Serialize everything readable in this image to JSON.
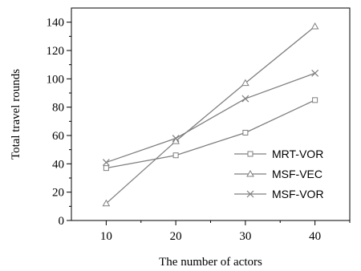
{
  "chart_data": {
    "type": "line",
    "x": [
      10,
      20,
      30,
      40
    ],
    "xlabel": "The number of actors",
    "ylabel": "Total travel rounds",
    "xlim": [
      5,
      45
    ],
    "ylim": [
      0,
      150
    ],
    "xticks": [
      10,
      20,
      30,
      40
    ],
    "yticks": [
      0,
      20,
      40,
      60,
      80,
      100,
      120,
      140
    ],
    "grid": false,
    "legend_position": "right",
    "series": [
      {
        "name": "MRT-VOR",
        "marker": "square",
        "values": [
          37,
          46,
          62,
          85
        ]
      },
      {
        "name": "MSF-VEC",
        "marker": "triangle",
        "values": [
          12,
          56,
          97,
          137
        ]
      },
      {
        "name": "MSF-VOR",
        "marker": "cross",
        "values": [
          41,
          58,
          86,
          104
        ]
      }
    ],
    "line_color": "#7f7f7f"
  }
}
